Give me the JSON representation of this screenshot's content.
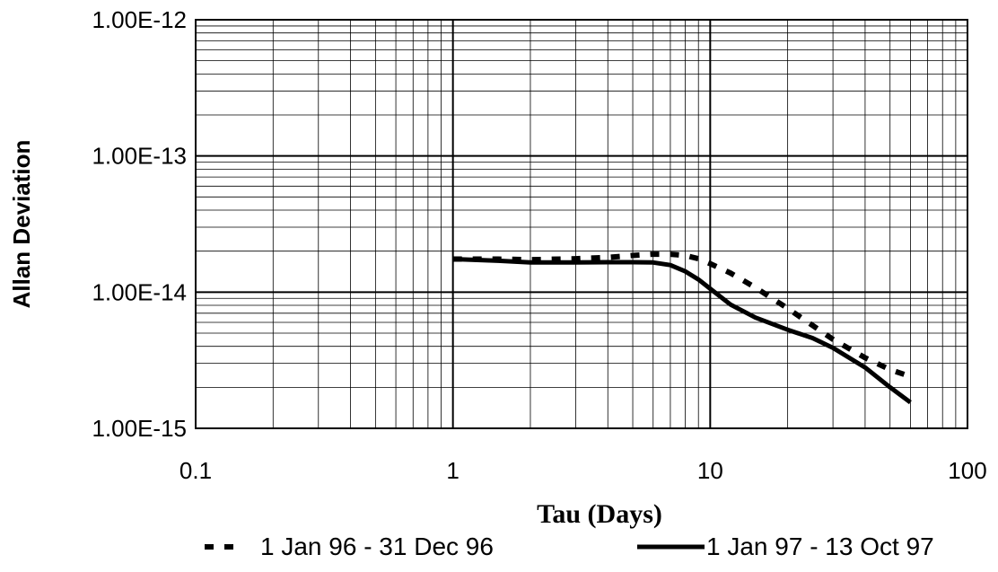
{
  "chart_data": {
    "type": "line",
    "title": "",
    "xlabel": "Tau (Days)",
    "ylabel": "Allan Deviation",
    "xscale": "log",
    "yscale": "log",
    "xlim": [
      0.1,
      100
    ],
    "ylim": [
      1e-15,
      1e-12
    ],
    "grid": true,
    "legend_position": "bottom",
    "x_tick_labels": [
      "0.1",
      "1",
      "10",
      "100"
    ],
    "y_tick_labels": [
      "1.00E-15",
      "1.00E-14",
      "1.00E-13",
      "1.00E-12"
    ],
    "series": [
      {
        "name": "1 Jan 96 - 31 Dec 96",
        "style": "dashed",
        "color": "#000000",
        "x": [
          1,
          1.5,
          2,
          3,
          4,
          5,
          6,
          7,
          8,
          9,
          10,
          12,
          15,
          20,
          25,
          30,
          40,
          50,
          60
        ],
        "y": [
          1.75e-14,
          1.75e-14,
          1.73e-14,
          1.76e-14,
          1.8e-14,
          1.86e-14,
          1.9e-14,
          1.9e-14,
          1.86e-14,
          1.76e-14,
          1.62e-14,
          1.38e-14,
          1.08e-14,
          7.6e-15,
          5.7e-15,
          4.5e-15,
          3.3e-15,
          2.7e-15,
          2.4e-15
        ]
      },
      {
        "name": "1 Jan 97 - 13 Oct 97",
        "style": "solid",
        "color": "#000000",
        "x": [
          1,
          1.5,
          2,
          3,
          4,
          5,
          6,
          7,
          8,
          9,
          10,
          12,
          15,
          20,
          25,
          30,
          40,
          50,
          60
        ],
        "y": [
          1.75e-14,
          1.7e-14,
          1.65e-14,
          1.65e-14,
          1.66e-14,
          1.66e-14,
          1.65e-14,
          1.58e-14,
          1.42e-14,
          1.24e-14,
          1.06e-14,
          8.1e-15,
          6.5e-15,
          5.3e-15,
          4.6e-15,
          3.9e-15,
          2.8e-15,
          2e-15,
          1.55e-15
        ]
      }
    ]
  }
}
